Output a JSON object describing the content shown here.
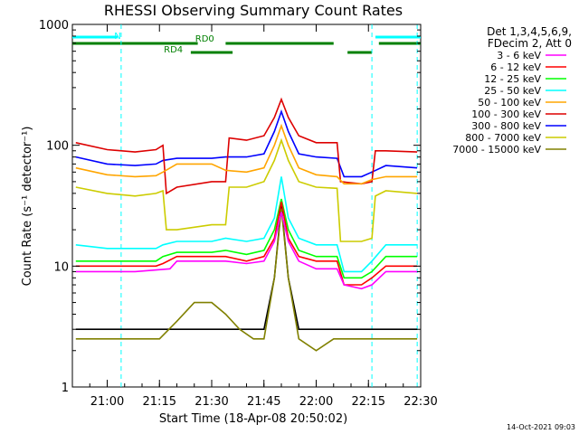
{
  "chart_data": {
    "type": "line",
    "title": "RHESSI Observing Summary Count Rates",
    "xlabel": "Start Time (18-Apr-08 20:50:02)",
    "ylabel": "Count Rate (s⁻¹ detector⁻¹)",
    "x_range": [
      "20:50",
      "22:30"
    ],
    "y_scale": "log",
    "ylim": [
      1,
      1000
    ],
    "x_ticks": [
      "21:00",
      "21:15",
      "21:30",
      "21:45",
      "22:00",
      "22:15",
      "22:30"
    ],
    "y_ticks": [
      "1",
      "10",
      "100",
      "1000"
    ],
    "legend_header": [
      "Det 1,3,4,5,6,9,",
      "FDecim 2, Att 0"
    ],
    "legend_position": "right",
    "footer_date": "14-Oct-2021 09:03",
    "status_bars": [
      {
        "label": "N",
        "color": "#00ffff",
        "segments": [
          [
            "20:50",
            "21:03"
          ],
          [
            "22:17",
            "22:30"
          ]
        ],
        "label_at": "21:03"
      },
      {
        "label": "RD0",
        "color": "#008000",
        "segments": [
          [
            "20:50",
            "21:26"
          ],
          [
            "21:34",
            "22:05"
          ],
          [
            "22:18",
            "22:30"
          ]
        ],
        "label_at": "21:28"
      },
      {
        "label": "RD4",
        "color": "#008000",
        "segments": [
          [
            "21:24",
            "21:36"
          ],
          [
            "22:09",
            "22:16"
          ]
        ],
        "label_at": "21:19"
      }
    ],
    "vlines": [
      "21:04",
      "22:16",
      "22:29"
    ],
    "series": [
      {
        "name": "3 - 6 keV",
        "color": "#ff00ff",
        "x": [
          "20:51",
          "21:00",
          "21:08",
          "21:18",
          "21:20",
          "21:30",
          "21:34",
          "21:40",
          "21:45",
          "21:48",
          "21:50",
          "21:52",
          "21:55",
          "22:00",
          "22:06",
          "22:08",
          "22:13",
          "22:16",
          "22:20",
          "22:29"
        ],
        "values": [
          9,
          9,
          9,
          9.5,
          11,
          11,
          11,
          10.5,
          11,
          16,
          28,
          16,
          11,
          9.5,
          9.5,
          7,
          6.5,
          7,
          9,
          9
        ]
      },
      {
        "name": "6 - 12 keV",
        "color": "#ff0000",
        "x": [
          "20:51",
          "21:00",
          "21:08",
          "21:14",
          "21:16",
          "21:20",
          "21:30",
          "21:34",
          "21:40",
          "21:45",
          "21:48",
          "21:50",
          "21:52",
          "21:55",
          "22:00",
          "22:06",
          "22:08",
          "22:13",
          "22:16",
          "22:20",
          "22:29"
        ],
        "values": [
          10,
          10,
          10,
          10,
          10.5,
          12,
          12,
          12,
          11,
          12,
          17,
          34,
          17,
          12,
          11,
          11,
          7,
          7,
          8,
          10,
          10
        ]
      },
      {
        "name": "12 - 25 keV",
        "color": "#00ff00",
        "x": [
          "20:51",
          "21:00",
          "21:08",
          "21:14",
          "21:16",
          "21:20",
          "21:30",
          "21:34",
          "21:40",
          "21:45",
          "21:48",
          "21:50",
          "21:52",
          "21:55",
          "22:00",
          "22:06",
          "22:08",
          "22:13",
          "22:16",
          "22:20",
          "22:29"
        ],
        "values": [
          11,
          11,
          11,
          11,
          12,
          13,
          13,
          13.5,
          12.5,
          13.5,
          20,
          36,
          20,
          13.5,
          12,
          12,
          8,
          8,
          9,
          12,
          12
        ]
      },
      {
        "name": "25 - 50 keV",
        "color": "#00ffff",
        "x": [
          "20:51",
          "21:00",
          "21:08",
          "21:14",
          "21:16",
          "21:20",
          "21:30",
          "21:34",
          "21:40",
          "21:45",
          "21:48",
          "21:50",
          "21:52",
          "21:55",
          "22:00",
          "22:06",
          "22:08",
          "22:13",
          "22:16",
          "22:20",
          "22:29"
        ],
        "values": [
          15,
          14,
          14,
          14,
          15,
          16,
          16,
          17,
          16,
          17,
          25,
          55,
          25,
          17,
          15,
          15,
          9,
          9,
          11,
          15,
          15
        ]
      },
      {
        "name": "50 - 100 keV",
        "color": "#ffa500",
        "x": [
          "20:51",
          "21:00",
          "21:08",
          "21:14",
          "21:16",
          "21:20",
          "21:30",
          "21:34",
          "21:40",
          "21:45",
          "21:48",
          "21:50",
          "21:52",
          "21:55",
          "22:00",
          "22:06",
          "22:08",
          "22:13",
          "22:16",
          "22:20",
          "22:29"
        ],
        "values": [
          65,
          57,
          55,
          56,
          60,
          70,
          70,
          62,
          60,
          65,
          100,
          145,
          100,
          65,
          57,
          55,
          48,
          48,
          52,
          55,
          55
        ]
      },
      {
        "name": "100 - 300 keV",
        "color": "#dd0000",
        "x": [
          "20:51",
          "21:00",
          "21:08",
          "21:14",
          "21:16",
          "21:17",
          "21:20",
          "21:30",
          "21:34",
          "21:35",
          "21:40",
          "21:45",
          "21:48",
          "21:50",
          "21:52",
          "21:55",
          "22:00",
          "22:06",
          "22:07",
          "22:13",
          "22:16",
          "22:17",
          "22:20",
          "22:29"
        ],
        "values": [
          105,
          92,
          88,
          92,
          100,
          40,
          45,
          50,
          50,
          115,
          110,
          120,
          170,
          240,
          170,
          120,
          105,
          105,
          50,
          48,
          50,
          90,
          90,
          88
        ]
      },
      {
        "name": "300 - 800 keV",
        "color": "#0000ff",
        "x": [
          "20:51",
          "21:00",
          "21:08",
          "21:14",
          "21:16",
          "21:20",
          "21:30",
          "21:34",
          "21:40",
          "21:45",
          "21:48",
          "21:50",
          "21:52",
          "21:55",
          "22:00",
          "22:06",
          "22:08",
          "22:13",
          "22:16",
          "22:20",
          "22:29"
        ],
        "values": [
          80,
          70,
          68,
          70,
          75,
          78,
          78,
          80,
          80,
          85,
          130,
          190,
          130,
          85,
          80,
          78,
          55,
          55,
          60,
          68,
          65
        ]
      },
      {
        "name": "800 - 7000 keV",
        "color": "#cccc00",
        "x": [
          "20:51",
          "21:00",
          "21:08",
          "21:14",
          "21:16",
          "21:17",
          "21:20",
          "21:30",
          "21:34",
          "21:35",
          "21:40",
          "21:45",
          "21:48",
          "21:50",
          "21:52",
          "21:55",
          "22:00",
          "22:06",
          "22:07",
          "22:13",
          "22:16",
          "22:17",
          "22:20",
          "22:29"
        ],
        "values": [
          45,
          40,
          38,
          40,
          42,
          20,
          20,
          22,
          22,
          45,
          45,
          50,
          75,
          110,
          75,
          50,
          45,
          44,
          16,
          16,
          17,
          38,
          42,
          40
        ]
      },
      {
        "name": "7000 - 15000 keV",
        "color": "#808000",
        "x": [
          "20:51",
          "21:00",
          "21:10",
          "21:15",
          "21:20",
          "21:25",
          "21:30",
          "21:34",
          "21:38",
          "21:42",
          "21:45",
          "21:48",
          "21:50",
          "21:52",
          "21:55",
          "22:00",
          "22:05",
          "22:10",
          "22:15",
          "22:20",
          "22:29"
        ],
        "values": [
          2.5,
          2.5,
          2.5,
          2.5,
          3.5,
          5,
          5,
          4,
          3,
          2.5,
          2.5,
          8,
          30,
          8,
          2.5,
          2,
          2.5,
          2.5,
          2.5,
          2.5,
          2.5
        ]
      },
      {
        "name": "",
        "color": "#000000",
        "x": [
          "20:51",
          "21:00",
          "21:10",
          "21:20",
          "21:30",
          "21:40",
          "21:45",
          "21:48",
          "21:50",
          "21:52",
          "21:55",
          "22:00",
          "22:10",
          "22:20",
          "22:29"
        ],
        "values": [
          3,
          3,
          3,
          3,
          3,
          3,
          3,
          8,
          32,
          8,
          3,
          3,
          3,
          3,
          3
        ]
      }
    ]
  }
}
